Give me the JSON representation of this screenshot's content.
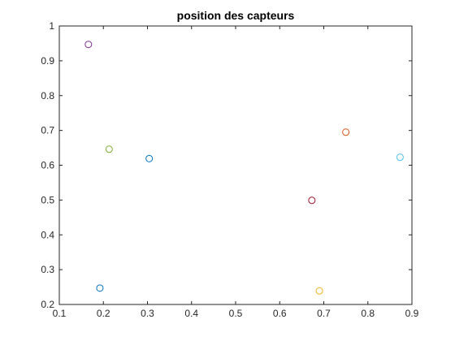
{
  "chart_data": {
    "type": "scatter",
    "title": "position des capteurs",
    "xlabel": "",
    "ylabel": "",
    "xlim": [
      0.1,
      0.9
    ],
    "ylim": [
      0.2,
      1.0
    ],
    "xticks": [
      0.1,
      0.2,
      0.3,
      0.4,
      0.5,
      0.6,
      0.7,
      0.8,
      0.9
    ],
    "yticks": [
      0.2,
      0.3,
      0.4,
      0.5,
      0.6,
      0.7,
      0.8,
      0.9,
      1.0
    ],
    "xtick_labels": [
      "0.1",
      "0.2",
      "0.3",
      "0.4",
      "0.5",
      "0.6",
      "0.7",
      "0.8",
      "0.9"
    ],
    "ytick_labels": [
      "0.2",
      "0.3",
      "0.4",
      "0.5",
      "0.6",
      "0.7",
      "0.8",
      "0.9",
      "1"
    ],
    "grid": false,
    "marker": "circle-open",
    "points": [
      {
        "x": 0.192,
        "y": 0.247,
        "color": "#0072BD"
      },
      {
        "x": 0.75,
        "y": 0.695,
        "color": "#D95319"
      },
      {
        "x": 0.69,
        "y": 0.239,
        "color": "#EDB120"
      },
      {
        "x": 0.166,
        "y": 0.947,
        "color": "#7E2F8E"
      },
      {
        "x": 0.213,
        "y": 0.646,
        "color": "#77AC30"
      },
      {
        "x": 0.873,
        "y": 0.623,
        "color": "#4DBEEE"
      },
      {
        "x": 0.673,
        "y": 0.499,
        "color": "#A2142F"
      },
      {
        "x": 0.304,
        "y": 0.619,
        "color": "#0072BD"
      }
    ]
  }
}
